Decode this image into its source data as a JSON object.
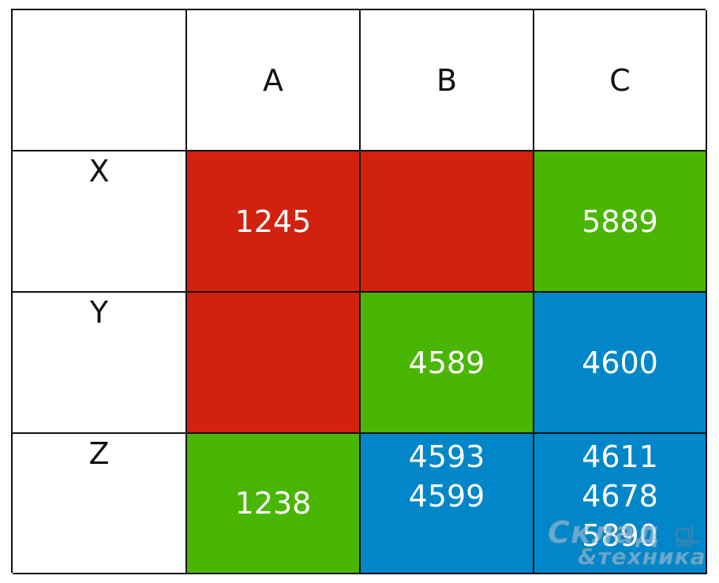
{
  "columns": [
    "A",
    "B",
    "C"
  ],
  "rows": [
    {
      "label": "X",
      "cells": [
        {
          "values": [
            "1245"
          ],
          "color": "#d3210f"
        },
        {
          "values": [],
          "color": "#d3210f"
        },
        {
          "values": [
            "5889"
          ],
          "color": "#4ab604"
        }
      ]
    },
    {
      "label": "Y",
      "cells": [
        {
          "values": [],
          "color": "#d3210f"
        },
        {
          "values": [
            "4589"
          ],
          "color": "#4ab604"
        },
        {
          "values": [
            "4600"
          ],
          "color": "#0187c9"
        }
      ]
    },
    {
      "label": "Z",
      "cells": [
        {
          "values": [
            "1238"
          ],
          "color": "#4ab604"
        },
        {
          "values": [
            "4593",
            "4599"
          ],
          "color": "#0187c9"
        },
        {
          "values": [
            "4611",
            "4678",
            "5890"
          ],
          "color": "#0187c9"
        }
      ]
    }
  ],
  "watermark": {
    "line1": "Склад",
    "line2": "&техника",
    "icon": "forklift-icon"
  }
}
